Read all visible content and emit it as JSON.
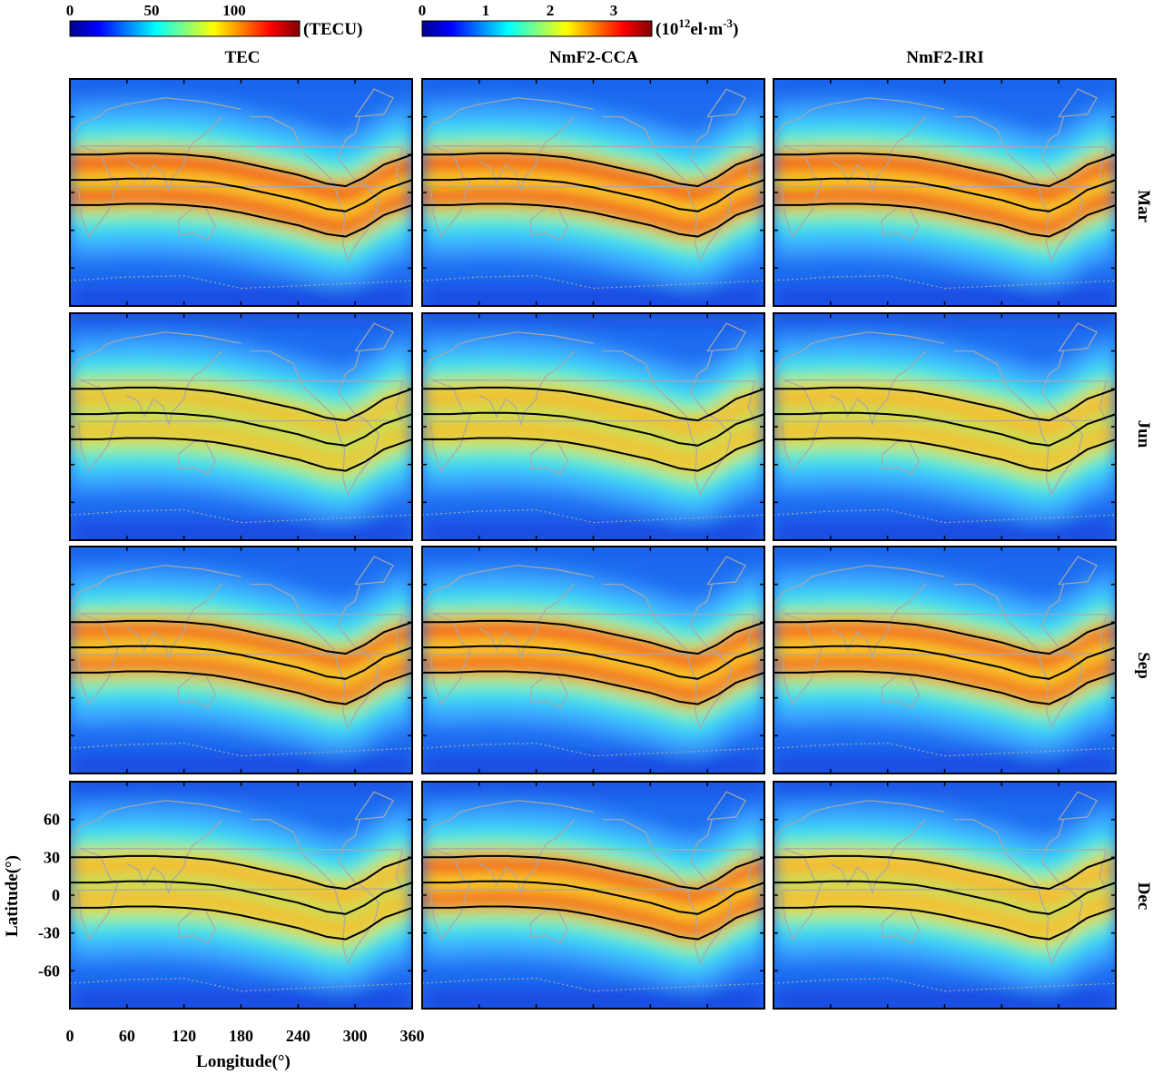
{
  "chart_data": {
    "type": "heatmap",
    "description_units": {
      "x": "degrees longitude",
      "y": "degrees latitude"
    },
    "columns": [
      "TEC",
      "NmF2-CCA",
      "NmF2-IRI"
    ],
    "rows": [
      "Mar",
      "Jun",
      "Sep",
      "Dec"
    ],
    "xlabel": "Longitude(°)",
    "ylabel": "Latitude(°)",
    "xlim": [
      0,
      360
    ],
    "ylim": [
      -90,
      90
    ],
    "xticks": [
      0,
      60,
      120,
      180,
      240,
      300,
      360
    ],
    "yticks": [
      60,
      30,
      0,
      -30,
      -60
    ],
    "colorbars": [
      {
        "name": "TEC",
        "unit": "(TECU)",
        "range": [
          0,
          140
        ],
        "ticks": [
          0,
          50,
          100
        ]
      },
      {
        "name": "NmF2",
        "unit_base": "(10",
        "unit_exp": "12",
        "unit_rest": "el·m",
        "unit_exp2": "-3",
        "unit_close": ")",
        "range": [
          0,
          3.6
        ],
        "ticks": [
          0,
          1,
          2,
          3
        ]
      }
    ],
    "colorscale": [
      "#00008f",
      "#0000ff",
      "#0080ff",
      "#00ffff",
      "#80ff80",
      "#ffff00",
      "#ff8000",
      "#ff0000",
      "#800000"
    ],
    "magnetic_equator_lines": {
      "longitude": [
        0,
        30,
        60,
        90,
        120,
        150,
        180,
        210,
        240,
        270,
        290,
        310,
        330,
        360
      ],
      "dip_equator_lat": [
        10,
        10,
        11,
        11,
        10,
        8,
        4,
        -1,
        -6,
        -13,
        -15,
        -8,
        2,
        10
      ],
      "offsets_deg": [
        -20,
        0,
        20
      ]
    },
    "month_crest_strength": [
      {
        "month": "Mar",
        "TEC": 1.0,
        "NmF2-CCA": 0.97,
        "NmF2-IRI": 0.95
      },
      {
        "month": "Jun",
        "TEC": 0.62,
        "NmF2-CCA": 0.7,
        "NmF2-IRI": 0.72
      },
      {
        "month": "Sep",
        "TEC": 0.82,
        "NmF2-CCA": 0.92,
        "NmF2-IRI": 0.85
      },
      {
        "month": "Dec",
        "TEC": 0.74,
        "NmF2-CCA": 0.88,
        "NmF2-IRI": 0.78
      }
    ]
  }
}
